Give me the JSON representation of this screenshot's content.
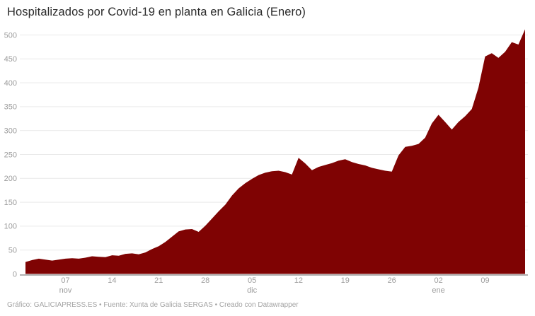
{
  "header": {
    "title": "Hospitalizados por Covid-19 en planta en Galicia (Enero)"
  },
  "footer": {
    "text": "Gráfico: GALICIAPRESS.ES • Fuente: Xunta de Galicia SERGAS • Creado con Datawrapper"
  },
  "colors": {
    "area": "#7f0303",
    "grid": "#e9e9e9",
    "baseline": "#b0b0b0",
    "axis_text": "#9c9c9c",
    "title_text": "#2b2b2b",
    "footer_text": "#a3a3a3"
  },
  "chart_data": {
    "type": "area",
    "title": "Hospitalizados por Covid-19 en planta en Galicia (Enero)",
    "xlabel": "",
    "ylabel": "",
    "ylim": [
      0,
      500
    ],
    "grid": true,
    "legend": "none",
    "y_ticks": [
      0,
      50,
      100,
      150,
      200,
      250,
      300,
      350,
      400,
      450,
      500
    ],
    "x_ticks": [
      {
        "index": 6,
        "label": "07",
        "month": "nov"
      },
      {
        "index": 13,
        "label": "14",
        "month": ""
      },
      {
        "index": 20,
        "label": "21",
        "month": ""
      },
      {
        "index": 27,
        "label": "28",
        "month": ""
      },
      {
        "index": 34,
        "label": "05",
        "month": "dic"
      },
      {
        "index": 41,
        "label": "12",
        "month": ""
      },
      {
        "index": 48,
        "label": "19",
        "month": ""
      },
      {
        "index": 55,
        "label": "26",
        "month": ""
      },
      {
        "index": 62,
        "label": "02",
        "month": "ene"
      },
      {
        "index": 69,
        "label": "09",
        "month": ""
      }
    ],
    "x_description": "daily values from 01 nov to 15 ene",
    "values": [
      25,
      29,
      32,
      30,
      28,
      30,
      32,
      33,
      32,
      34,
      37,
      36,
      35,
      39,
      38,
      42,
      43,
      41,
      45,
      52,
      58,
      67,
      78,
      89,
      93,
      94,
      88,
      101,
      116,
      131,
      145,
      164,
      179,
      190,
      199,
      207,
      212,
      215,
      216,
      213,
      208,
      243,
      231,
      217,
      224,
      228,
      232,
      237,
      240,
      234,
      230,
      227,
      222,
      219,
      216,
      214,
      248,
      266,
      268,
      272,
      285,
      315,
      333,
      318,
      302,
      318,
      330,
      345,
      390,
      455,
      462,
      452,
      465,
      485,
      480,
      512
    ]
  }
}
